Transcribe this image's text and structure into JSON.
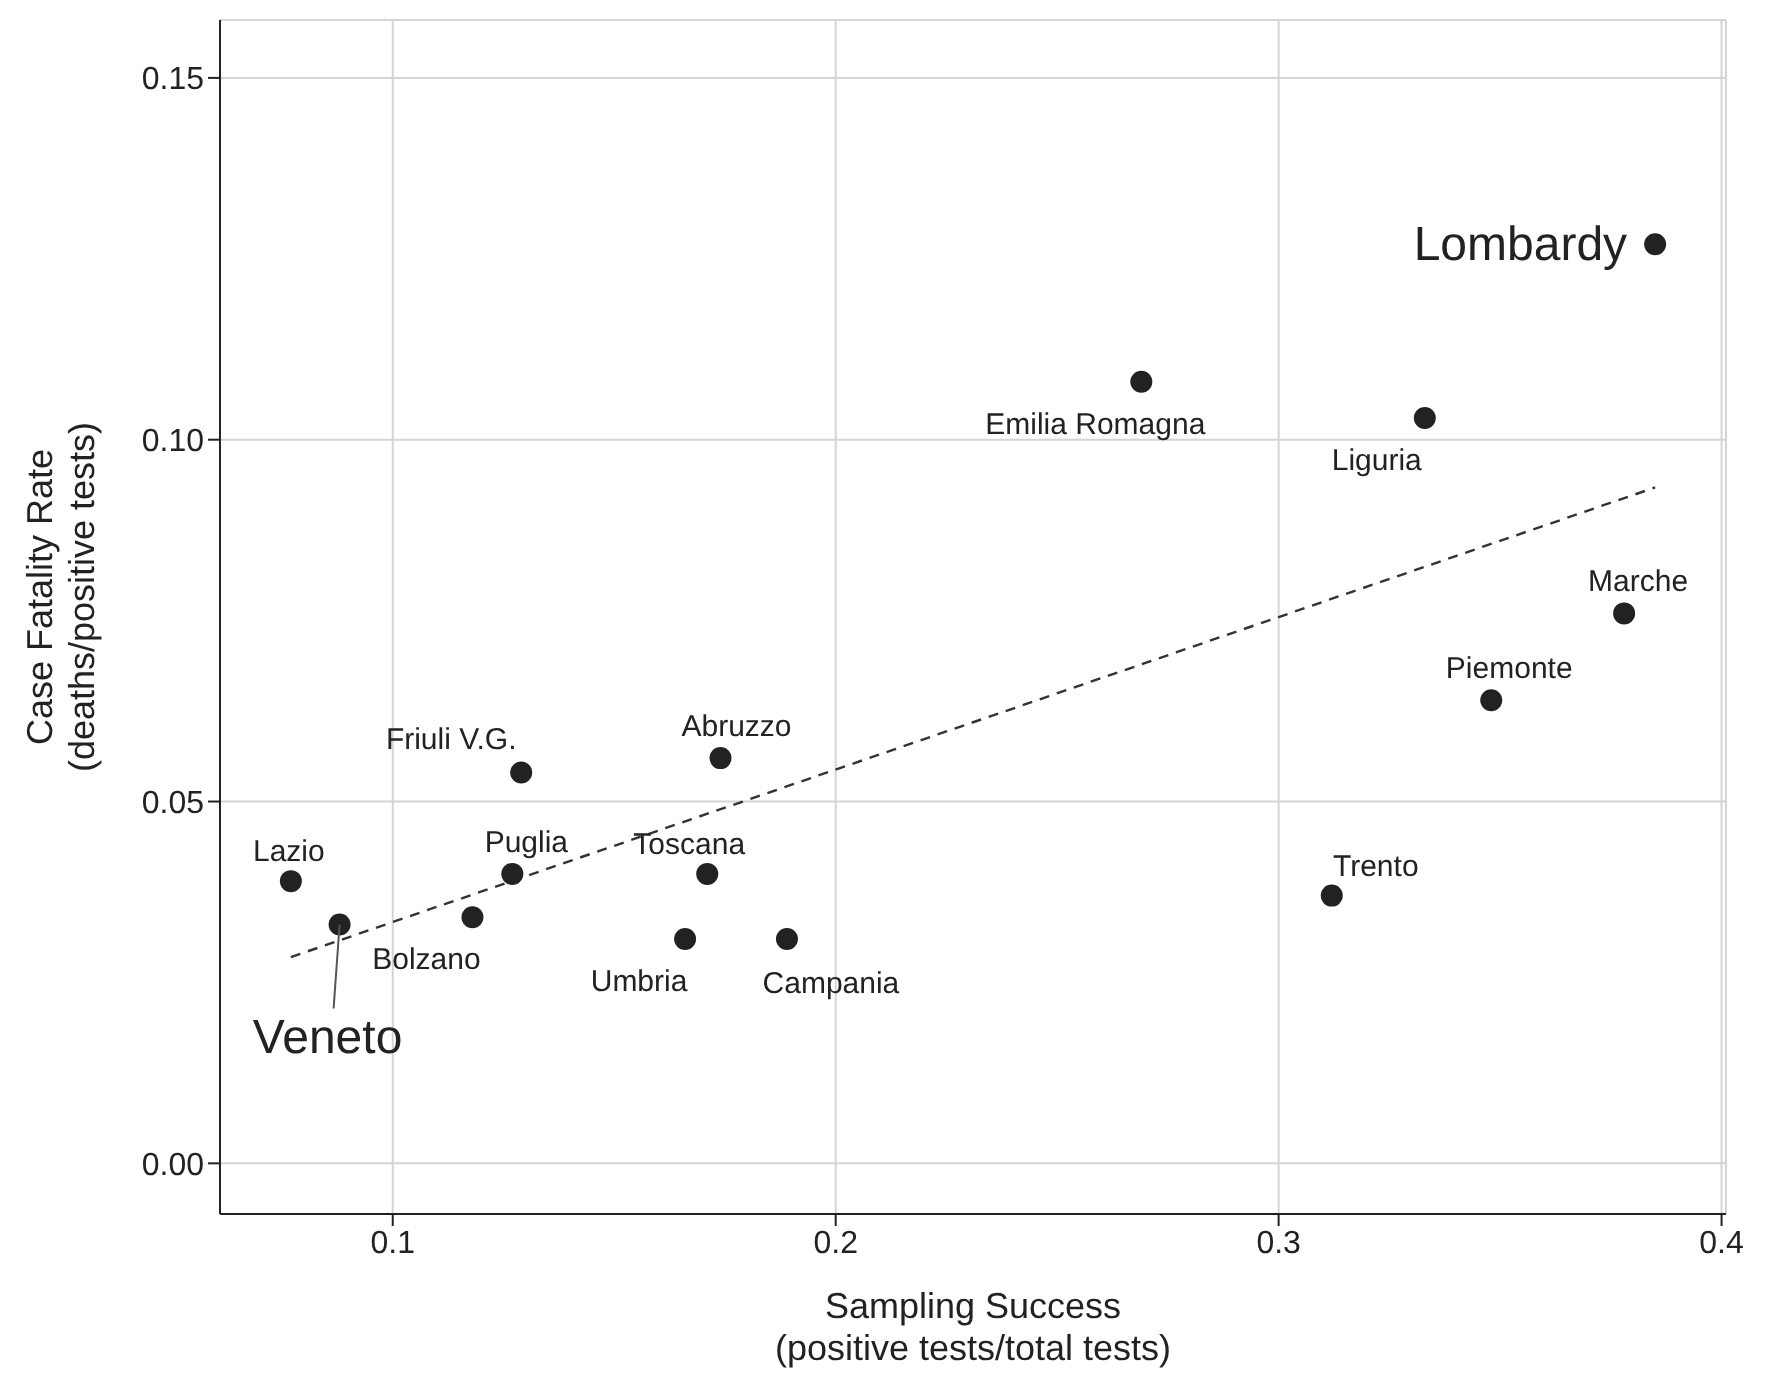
{
  "chart_data": {
    "type": "scatter",
    "xlabel": "Sampling Success\n(positive tests/total tests)",
    "ylabel": "Case Fatality Rate\n(deaths/positive tests)",
    "xlim": [
      0.061,
      0.401
    ],
    "xticks": [
      0.1,
      0.2,
      0.3,
      0.4
    ],
    "ylim": [
      -0.007,
      0.158
    ],
    "yticks": [
      {
        "value": 0,
        "label": "0.00"
      },
      {
        "value": 0.05,
        "label": "0.05"
      },
      {
        "value": 0.1,
        "label": "0.10"
      },
      {
        "value": 0.15,
        "label": "0.15"
      }
    ],
    "grid": true,
    "series": [
      {
        "color": "#222222",
        "marker": "circle",
        "x": [
          0.385,
          0.269,
          0.333,
          0.378,
          0.348,
          0.312,
          0.174,
          0.129,
          0.171,
          0.127,
          0.077,
          0.088,
          0.118,
          0.166,
          0.189
        ],
        "values": [
          0.127,
          0.108,
          0.103,
          0.076,
          0.064,
          0.037,
          0.056,
          0.054,
          0.04,
          0.04,
          0.039,
          0.033,
          0.034,
          0.031,
          0.031
        ]
      },
      {
        "type": "line",
        "color": "#333333",
        "marker": "none",
        "line_style": "dashed",
        "x": [
          0.077,
          0.385
        ],
        "values": [
          0.0285,
          0.0934
        ]
      }
    ],
    "annotations": [
      {
        "text": "Lombardy",
        "x": 0.385,
        "y": 0.127
      },
      {
        "text": "Emilia Romagna",
        "x": 0.269,
        "y": 0.108
      },
      {
        "text": "Liguria",
        "x": 0.333,
        "y": 0.103
      },
      {
        "text": "Marche",
        "x": 0.378,
        "y": 0.076
      },
      {
        "text": "Piemonte",
        "x": 0.348,
        "y": 0.064
      },
      {
        "text": "Trento",
        "x": 0.312,
        "y": 0.037
      },
      {
        "text": "Abruzzo",
        "x": 0.174,
        "y": 0.056
      },
      {
        "text": "Friuli V.G.",
        "x": 0.129,
        "y": 0.054
      },
      {
        "text": "Toscana",
        "x": 0.171,
        "y": 0.04
      },
      {
        "text": "Puglia",
        "x": 0.127,
        "y": 0.04
      },
      {
        "text": "Lazio",
        "x": 0.077,
        "y": 0.039
      },
      {
        "text": "Veneto",
        "x": 0.088,
        "y": 0.033
      },
      {
        "text": "Bolzano",
        "x": 0.118,
        "y": 0.034
      },
      {
        "text": "Umbria",
        "x": 0.166,
        "y": 0.031
      },
      {
        "text": "Campania",
        "x": 0.189,
        "y": 0.031
      }
    ]
  }
}
